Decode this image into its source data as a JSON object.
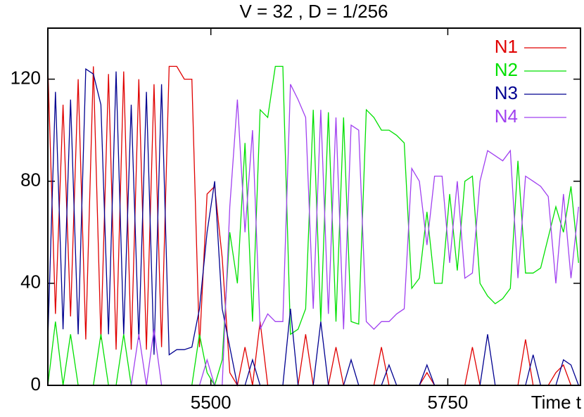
{
  "chart_data": {
    "type": "line",
    "title": "V = 32 , D = 1/256",
    "x_label": "Time t",
    "x": [
      5328,
      5336,
      5344,
      5352,
      5360,
      5368,
      5376,
      5384,
      5392,
      5400,
      5408,
      5416,
      5424,
      5432,
      5440,
      5448,
      5456,
      5464,
      5472,
      5480,
      5488,
      5496,
      5504,
      5512,
      5520,
      5528,
      5536,
      5544,
      5552,
      5560,
      5568,
      5576,
      5584,
      5592,
      5600,
      5608,
      5616,
      5624,
      5632,
      5640,
      5648,
      5656,
      5664,
      5672,
      5680,
      5688,
      5696,
      5704,
      5712,
      5720,
      5728,
      5736,
      5744,
      5752,
      5760,
      5768,
      5776,
      5784,
      5792,
      5800,
      5808,
      5816,
      5824,
      5832,
      5840,
      5848,
      5856,
      5864,
      5872,
      5880,
      5888
    ],
    "series": [
      {
        "name": "N1",
        "color": "#e00000",
        "values": [
          125,
          28,
          110,
          27,
          120,
          18,
          125,
          18,
          122,
          14,
          123,
          14,
          120,
          14,
          118,
          15,
          125,
          125,
          120,
          120,
          15,
          75,
          78,
          50,
          5,
          0,
          15,
          0,
          25,
          0,
          0,
          0,
          0,
          0,
          20,
          0,
          0,
          0,
          15,
          0,
          0,
          0,
          0,
          0,
          15,
          0,
          0,
          0,
          0,
          0,
          5,
          0,
          0,
          0,
          0,
          0,
          15,
          0,
          0,
          0,
          0,
          0,
          0,
          18,
          0,
          0,
          0,
          5,
          8,
          0,
          0
        ]
      },
      {
        "name": "N2",
        "color": "#00e000",
        "values": [
          0,
          25,
          0,
          20,
          0,
          0,
          0,
          20,
          0,
          0,
          20,
          0,
          0,
          0,
          0,
          0,
          0,
          0,
          0,
          0,
          20,
          5,
          0,
          10,
          60,
          40,
          95,
          25,
          108,
          105,
          125,
          125,
          20,
          22,
          30,
          108,
          25,
          107,
          25,
          105,
          25,
          24,
          108,
          105,
          100,
          100,
          98,
          95,
          38,
          42,
          68,
          40,
          40,
          75,
          45,
          80,
          82,
          40,
          35,
          32,
          34,
          38,
          88,
          44,
          44,
          46,
          58,
          70,
          60,
          78,
          48
        ]
      },
      {
        "name": "N3",
        "color": "#000090",
        "values": [
          18,
          115,
          22,
          112,
          20,
          124,
          122,
          110,
          20,
          123,
          20,
          110,
          18,
          115,
          12,
          118,
          12,
          14,
          14,
          15,
          30,
          60,
          80,
          30,
          15,
          0,
          0,
          10,
          0,
          0,
          0,
          0,
          30,
          0,
          0,
          0,
          25,
          0,
          0,
          0,
          10,
          0,
          0,
          0,
          0,
          8,
          0,
          0,
          0,
          0,
          8,
          0,
          0,
          0,
          0,
          0,
          0,
          0,
          20,
          0,
          0,
          0,
          0,
          0,
          12,
          0,
          0,
          0,
          10,
          8,
          0
        ]
      },
      {
        "name": "N4",
        "color": "#a040f0",
        "values": [
          0,
          0,
          0,
          0,
          0,
          0,
          0,
          0,
          0,
          0,
          0,
          0,
          20,
          0,
          22,
          0,
          0,
          0,
          0,
          0,
          0,
          10,
          0,
          0,
          70,
          112,
          60,
          100,
          22,
          28,
          25,
          25,
          118,
          112,
          105,
          30,
          108,
          28,
          105,
          22,
          102,
          100,
          25,
          22,
          25,
          25,
          28,
          30,
          85,
          80,
          55,
          82,
          82,
          48,
          80,
          42,
          44,
          80,
          92,
          90,
          88,
          92,
          42,
          82,
          80,
          78,
          74,
          40,
          75,
          42,
          70
        ]
      }
    ],
    "xlim": [
      5328,
      5890
    ],
    "ylim": [
      0,
      140
    ],
    "xticks": [
      5500,
      5750
    ],
    "yticks": [
      0,
      40,
      80,
      120
    ]
  }
}
